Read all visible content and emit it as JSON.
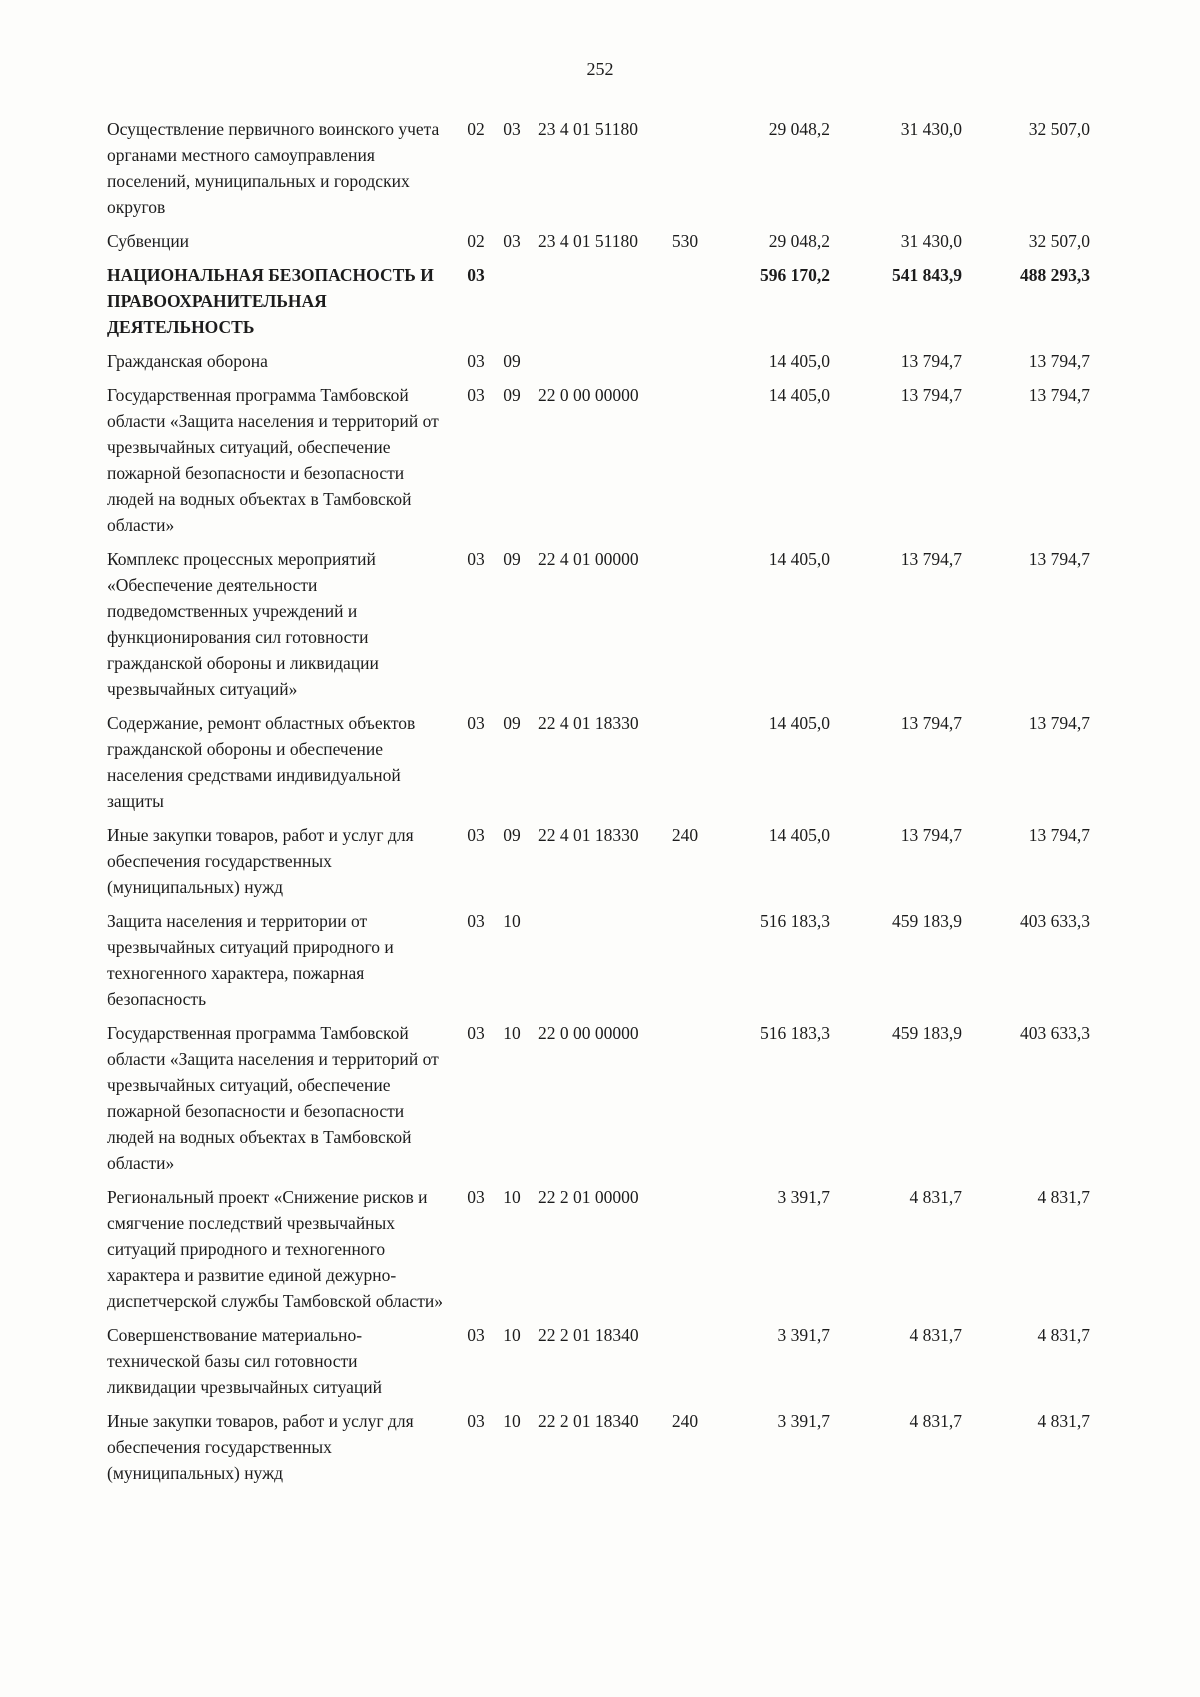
{
  "page": {
    "number": "252"
  },
  "table": {
    "rows": [
      {
        "name": "Осуществление первичного воинского учета органами местного самоуправления поселений, муниципальных и городских округов",
        "rz": "02",
        "pr": "03",
        "csr": "23 4 01 51180",
        "vr": "",
        "a1": "29 048,2",
        "a2": "31 430,0",
        "a3": "32 507,0"
      },
      {
        "name": "Субвенции",
        "rz": "02",
        "pr": "03",
        "csr": "23 4 01 51180",
        "vr": "530",
        "a1": "29 048,2",
        "a2": "31 430,0",
        "a3": "32 507,0"
      },
      {
        "name": "НАЦИОНАЛЬНАЯ БЕЗОПАСНОСТЬ И ПРАВООХРАНИТЕЛЬНАЯ ДЕЯТЕЛЬНОСТЬ",
        "rz": "03",
        "pr": "",
        "csr": "",
        "vr": "",
        "a1": "596 170,2",
        "a2": "541 843,9",
        "a3": "488 293,3"
      },
      {
        "name": "Гражданская оборона",
        "rz": "03",
        "pr": "09",
        "csr": "",
        "vr": "",
        "a1": "14 405,0",
        "a2": "13 794,7",
        "a3": "13 794,7"
      },
      {
        "name": "Государственная программа Тамбовской области «Защита населения и территорий от чрезвычайных ситуаций, обеспечение пожарной безопасности и безопасности людей на водных объектах в Тамбовской области»",
        "rz": "03",
        "pr": "09",
        "csr": "22 0 00 00000",
        "vr": "",
        "a1": "14 405,0",
        "a2": "13 794,7",
        "a3": "13 794,7"
      },
      {
        "name": "Комплекс процессных мероприятий «Обеспечение деятельности подведомственных учреждений и функционирования сил готовности гражданской обороны и ликвидации чрезвычайных ситуаций»",
        "rz": "03",
        "pr": "09",
        "csr": "22 4 01 00000",
        "vr": "",
        "a1": "14 405,0",
        "a2": "13 794,7",
        "a3": "13 794,7"
      },
      {
        "name": "Содержание, ремонт областных объектов гражданской обороны и обеспечение населения средствами индивидуальной защиты",
        "rz": "03",
        "pr": "09",
        "csr": "22 4 01 18330",
        "vr": "",
        "a1": "14 405,0",
        "a2": "13 794,7",
        "a3": "13 794,7"
      },
      {
        "name": "Иные закупки товаров, работ и услуг для обеспечения государственных (муниципальных) нужд",
        "rz": "03",
        "pr": "09",
        "csr": "22 4 01 18330",
        "vr": "240",
        "a1": "14 405,0",
        "a2": "13 794,7",
        "a3": "13 794,7"
      },
      {
        "name": "Защита населения и территории от чрезвычайных ситуаций природного и техногенного характера, пожарная безопасность",
        "rz": "03",
        "pr": "10",
        "csr": "",
        "vr": "",
        "a1": "516 183,3",
        "a2": "459 183,9",
        "a3": "403 633,3"
      },
      {
        "name": "Государственная программа Тамбовской области «Защита населения и территорий от чрезвычайных ситуаций, обеспечение пожарной безопасности и безопасности людей на водных объектах в Тамбовской области»",
        "rz": "03",
        "pr": "10",
        "csr": "22 0 00 00000",
        "vr": "",
        "a1": "516 183,3",
        "a2": "459 183,9",
        "a3": "403 633,3"
      },
      {
        "name": "Региональный проект «Снижение рисков и смягчение последствий чрезвычайных ситуаций природного и техногенного характера и развитие единой дежурно-диспетчерской службы Тамбовской области»",
        "rz": "03",
        "pr": "10",
        "csr": "22 2 01 00000",
        "vr": "",
        "a1": "3 391,7",
        "a2": "4 831,7",
        "a3": "4 831,7"
      },
      {
        "name": "Совершенствование материально-технической базы сил готовности ликвидации чрезвычайных ситуаций",
        "rz": "03",
        "pr": "10",
        "csr": "22 2 01 18340",
        "vr": "",
        "a1": "3 391,7",
        "a2": "4 831,7",
        "a3": "4 831,7"
      },
      {
        "name": "Иные закупки товаров, работ и услуг для обеспечения государственных (муниципальных) нужд",
        "rz": "03",
        "pr": "10",
        "csr": "22 2 01 18340",
        "vr": "240",
        "a1": "3 391,7",
        "a2": "4 831,7",
        "a3": "4 831,7"
      }
    ]
  }
}
